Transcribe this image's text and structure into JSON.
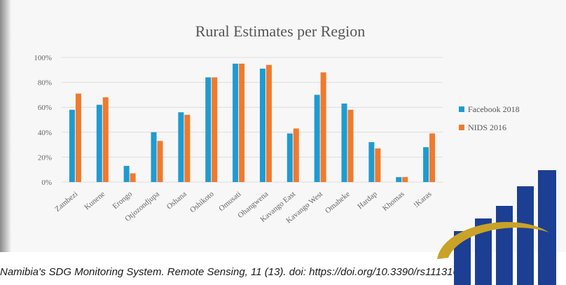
{
  "chart_data": {
    "type": "bar",
    "title": "Rural Estimates per Region",
    "categories": [
      "Zambezi",
      "Kunene",
      "Erongo",
      "Otjozondjupa",
      "Oshana",
      "Oshikoto",
      "Omusati",
      "Ohangwena",
      "Kavango East",
      "Kavango West",
      "Omaheke",
      "Hardap",
      "Khomas",
      "!Karas"
    ],
    "series": [
      {
        "name": "Facebook 2018",
        "color": "#1f9bd1",
        "values": [
          58,
          62,
          13,
          40,
          56,
          84,
          95,
          91,
          39,
          70,
          63,
          32,
          4,
          28
        ]
      },
      {
        "name": "NIDS 2016",
        "color": "#f07a2d",
        "values": [
          71,
          68,
          7,
          33,
          54,
          84,
          95,
          94,
          43,
          88,
          58,
          27,
          4,
          39
        ]
      }
    ],
    "ylim": [
      0,
      100
    ],
    "yticks": [
      "0%",
      "20%",
      "40%",
      "60%",
      "80%",
      "100%"
    ],
    "legend_position": "right"
  },
  "citation": "Namibia's SDG Monitoring System. Remote Sensing, 11 (13). doi: https://doi.org/10.3390/rs11131612"
}
